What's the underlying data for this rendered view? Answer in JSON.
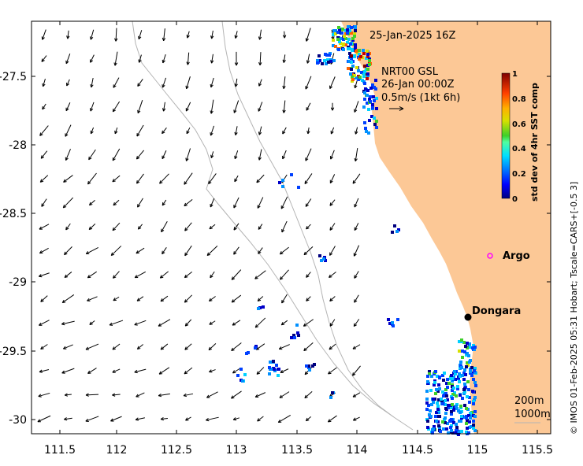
{
  "map": {
    "date_label": "25-Jan-2025 16Z",
    "current_source": "NRT00 GSL",
    "current_time": "26-Jan 00:00Z",
    "scale_arrow_label": "0.5m/s (1kt 6h)",
    "places": {
      "argo": "Argo",
      "dongara": "Dongara"
    },
    "contours": {
      "c200": "200m",
      "c1000": "1000m"
    },
    "x_ticks": [
      "111.5",
      "112",
      "112.5",
      "113",
      "113.5",
      "114",
      "114.5",
      "115",
      "115.5"
    ],
    "y_ticks": [
      "-27.5",
      "-28",
      "-28.5",
      "-29",
      "-29.5",
      "-30"
    ],
    "colorbar": {
      "title": "std dev of 4hr SST comp",
      "ticks": [
        "1",
        "0.8",
        "0.6",
        "0.4",
        "0.2",
        "0"
      ]
    },
    "credit": "© IMOS 01-Feb-2025 05:31 Hobart; Tscale=CARS+[-0.5 3]",
    "colors": {
      "land": "#fcc896",
      "ocean": "#ffffff",
      "isobath": "#b4b4b4",
      "argo_marker": "#ff00ff"
    }
  }
}
